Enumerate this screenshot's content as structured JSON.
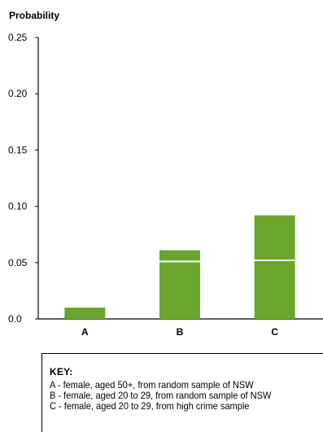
{
  "chart_data": {
    "type": "bar",
    "ylabel": "Probability",
    "ylim": [
      0,
      0.25
    ],
    "yticks": [
      "0.0",
      "0.05",
      "0.10",
      "0.15",
      "0.20",
      "0.25"
    ],
    "categories": [
      "A",
      "B",
      "C"
    ],
    "values": [
      0.01,
      0.061,
      0.092
    ],
    "segment_dividers": [
      null,
      0.051,
      0.052
    ],
    "bar_color": "#6aa52e"
  },
  "key": {
    "title": "KEY:",
    "items": [
      "A - female, aged 50+, from random sample of NSW",
      "B - female, aged 20 to 29, from random sample of NSW",
      "C - female, aged 20 to 29, from high crime sample"
    ]
  }
}
